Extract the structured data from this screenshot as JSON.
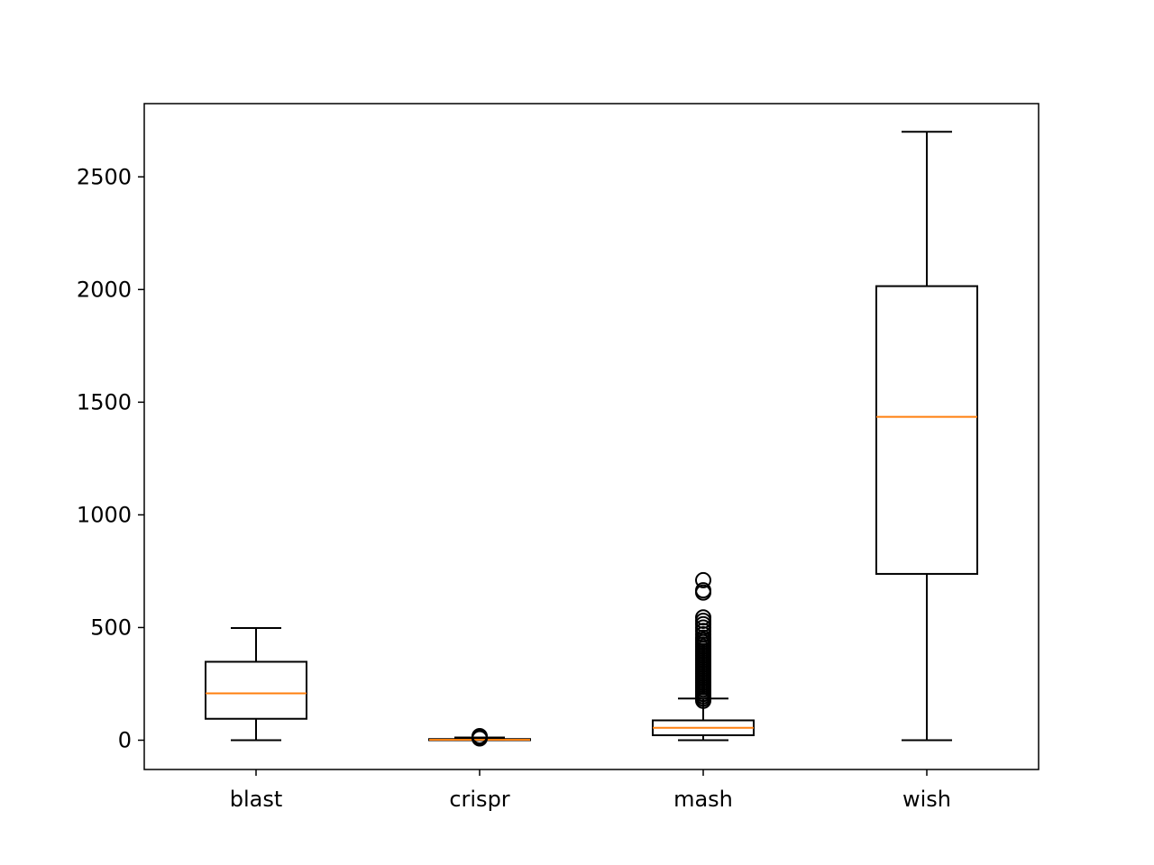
{
  "chart_data": {
    "type": "box",
    "title": "",
    "xlabel": "",
    "ylabel": "",
    "ylim": [
      -130,
      2825
    ],
    "y_ticks": [
      0,
      500,
      1000,
      1500,
      2000,
      2500
    ],
    "grid": false,
    "categories": [
      "blast",
      "crispr",
      "mash",
      "wish"
    ],
    "boxes": [
      {
        "name": "blast",
        "whisker_low": 0,
        "q1": 95,
        "median": 208,
        "q3": 348,
        "whisker_high": 498,
        "outliers": []
      },
      {
        "name": "crispr",
        "whisker_low": 0,
        "q1": 0,
        "median": 2,
        "q3": 5,
        "whisker_high": 12,
        "outliers": [
          8,
          12,
          15,
          18
        ]
      },
      {
        "name": "mash",
        "whisker_low": 0,
        "q1": 22,
        "median": 55,
        "q3": 88,
        "whisker_high": 185,
        "outliers": [
          175,
          185,
          195,
          205,
          215,
          225,
          235,
          245,
          255,
          265,
          275,
          285,
          295,
          305,
          315,
          325,
          335,
          345,
          355,
          365,
          375,
          385,
          395,
          405,
          415,
          425,
          435,
          445,
          455,
          470,
          485,
          500,
          515,
          530,
          545,
          655,
          665,
          710
        ]
      },
      {
        "name": "wish",
        "whisker_low": 0,
        "q1": 738,
        "median": 1435,
        "q3": 2015,
        "whisker_high": 2700,
        "outliers": []
      }
    ],
    "colors": {
      "box": "#000000",
      "median": "#ff7f0e",
      "flier": "#000000"
    }
  }
}
